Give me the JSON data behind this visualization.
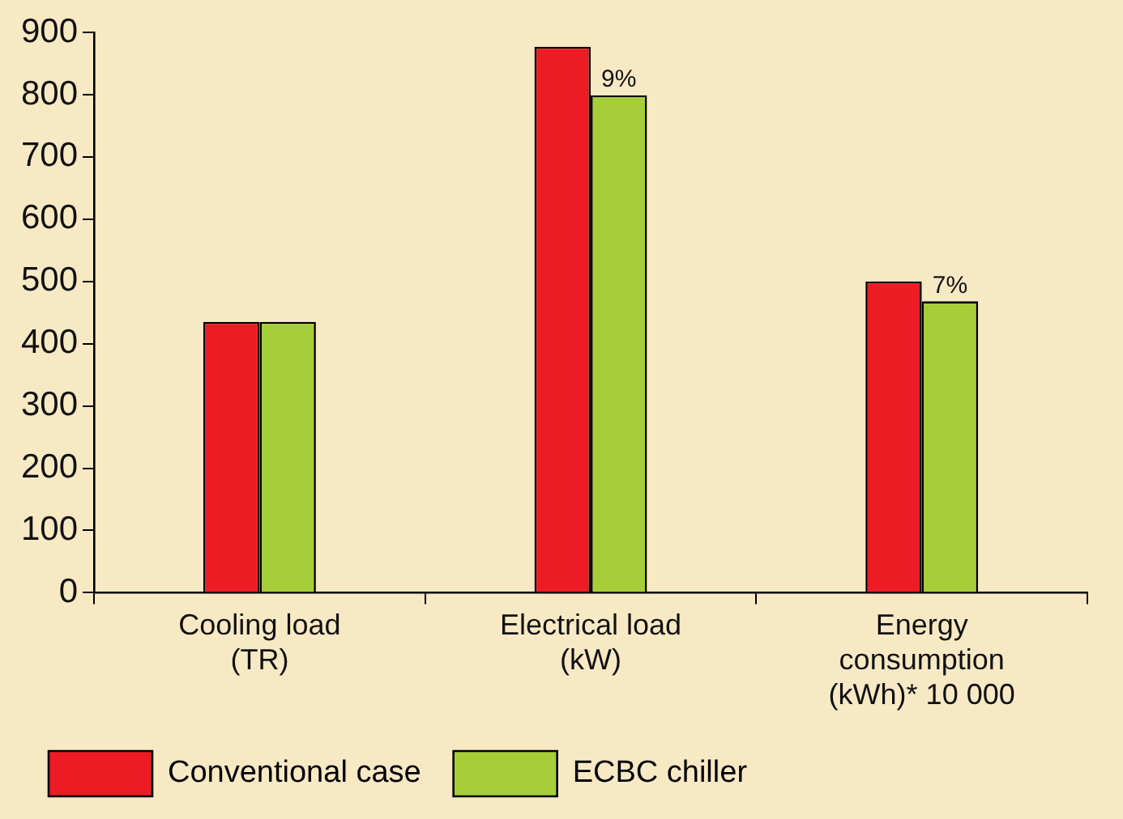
{
  "chart_data": {
    "type": "bar",
    "categories": [
      "Cooling load (TR)",
      "Electrical load (kW)",
      "Energy consumption (kWh)* 10 000"
    ],
    "series": [
      {
        "name": "Conventional case",
        "color": "#ed1c24",
        "values": [
          435,
          877,
          500
        ]
      },
      {
        "name": "ECBC chiller",
        "color": "#a6ce39",
        "values": [
          435,
          799,
          468
        ]
      }
    ],
    "ylim": [
      0,
      900
    ],
    "yticks": [
      0,
      100,
      200,
      300,
      400,
      500,
      600,
      700,
      800,
      900
    ],
    "grid": false,
    "legend": "bottom",
    "annotations": [
      {
        "text": "9%",
        "x": "Electrical load (kW)",
        "y": 799
      },
      {
        "text": "7%",
        "x": "Energy consumption (kWh)* 10 000",
        "y": 468
      }
    ]
  }
}
